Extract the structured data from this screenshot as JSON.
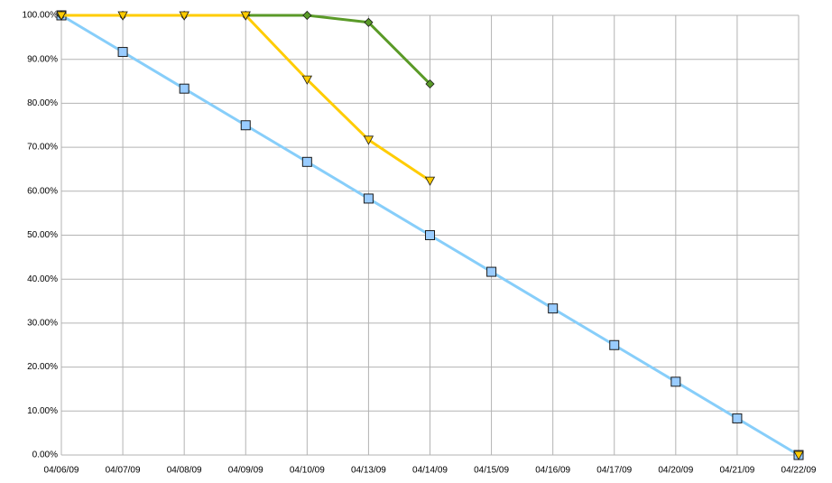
{
  "chart_data": {
    "type": "line",
    "categories": [
      "04/06/09",
      "04/07/09",
      "04/08/09",
      "04/09/09",
      "04/10/09",
      "04/13/09",
      "04/14/09",
      "04/15/09",
      "04/16/09",
      "04/17/09",
      "04/20/09",
      "04/21/09",
      "04/22/09"
    ],
    "series": [
      {
        "color": "#87cefa",
        "marker": "square",
        "values": [
          100,
          91.67,
          83.33,
          75,
          66.67,
          58.33,
          50,
          41.67,
          33.33,
          25,
          16.67,
          8.33,
          0
        ]
      },
      {
        "color": "#5a9a28",
        "marker": "diamond",
        "values": [
          100,
          100,
          100,
          100,
          100,
          98.4,
          84.4,
          null,
          null,
          null,
          null,
          null,
          null
        ]
      },
      {
        "color": "#ffcc00",
        "marker": "triangle",
        "values": [
          100,
          100,
          100,
          100,
          85.4,
          71.7,
          62.4,
          null,
          null,
          null,
          null,
          null,
          0
        ]
      }
    ],
    "ylim": [
      0,
      100
    ],
    "yticks": [
      {
        "value": 0,
        "label": "0.00%"
      },
      {
        "value": 10,
        "label": "10.00%"
      },
      {
        "value": 20,
        "label": "20.00%"
      },
      {
        "value": 30,
        "label": "30.00%"
      },
      {
        "value": 40,
        "label": "40.00%"
      },
      {
        "value": 50,
        "label": "50.00%"
      },
      {
        "value": 60,
        "label": "60.00%"
      },
      {
        "value": 70,
        "label": "70.00%"
      },
      {
        "value": 80,
        "label": "80.00%"
      },
      {
        "value": 90,
        "label": "90.00%"
      },
      {
        "value": 100,
        "label": "100.00%"
      }
    ],
    "grid": true
  }
}
